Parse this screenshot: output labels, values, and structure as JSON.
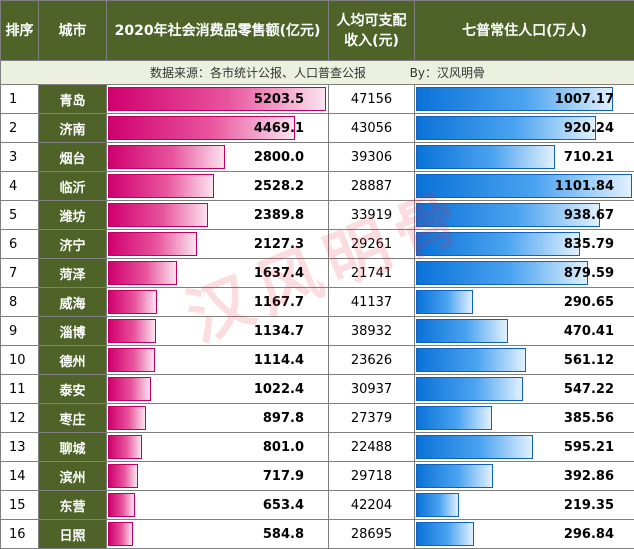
{
  "header": {
    "rank": "排序",
    "city": "城市",
    "sales": "2020年社会消费品零售额(亿元)",
    "income_line1": "人均可支配",
    "income_line2": "收入(元)",
    "population": "七普常住人口(万人)"
  },
  "source_note": "数据来源：各市统计公报、人口普查公报",
  "byline": "By：汉风明骨",
  "watermark": "汉风明骨",
  "colors": {
    "header_bg": "#4f6228",
    "sales_bar": "#d0006f",
    "population_bar": "#0a72d8",
    "source_bg": "#ebf1de"
  },
  "chart_data": {
    "type": "table",
    "columns": [
      "排序",
      "城市",
      "2020年社会消费品零售额(亿元)",
      "人均可支配收入(元)",
      "七普常住人口(万人)"
    ],
    "rows": [
      {
        "rank": "1",
        "city": "青岛",
        "sales": "5203.5",
        "income": "47156",
        "population": "1007.17"
      },
      {
        "rank": "2",
        "city": "济南",
        "sales": "4469.1",
        "income": "43056",
        "population": "920.24"
      },
      {
        "rank": "3",
        "city": "烟台",
        "sales": "2800.0",
        "income": "39306",
        "population": "710.21"
      },
      {
        "rank": "4",
        "city": "临沂",
        "sales": "2528.2",
        "income": "28887",
        "population": "1101.84"
      },
      {
        "rank": "5",
        "city": "潍坊",
        "sales": "2389.8",
        "income": "33919",
        "population": "938.67"
      },
      {
        "rank": "6",
        "city": "济宁",
        "sales": "2127.3",
        "income": "29261",
        "population": "835.79"
      },
      {
        "rank": "7",
        "city": "菏泽",
        "sales": "1637.4",
        "income": "21741",
        "population": "879.59"
      },
      {
        "rank": "8",
        "city": "威海",
        "sales": "1167.7",
        "income": "41137",
        "population": "290.65"
      },
      {
        "rank": "9",
        "city": "淄博",
        "sales": "1134.7",
        "income": "38932",
        "population": "470.41"
      },
      {
        "rank": "10",
        "city": "德州",
        "sales": "1114.4",
        "income": "23626",
        "population": "561.12"
      },
      {
        "rank": "11",
        "city": "泰安",
        "sales": "1022.4",
        "income": "30937",
        "population": "547.22"
      },
      {
        "rank": "12",
        "city": "枣庄",
        "sales": "897.8",
        "income": "27379",
        "population": "385.56"
      },
      {
        "rank": "13",
        "city": "聊城",
        "sales": "801.0",
        "income": "22488",
        "population": "595.21"
      },
      {
        "rank": "14",
        "city": "滨州",
        "sales": "717.9",
        "income": "29718",
        "population": "392.86"
      },
      {
        "rank": "15",
        "city": "东营",
        "sales": "653.4",
        "income": "42204",
        "population": "219.35"
      },
      {
        "rank": "16",
        "city": "日照",
        "sales": "584.8",
        "income": "28695",
        "population": "296.84"
      }
    ]
  }
}
